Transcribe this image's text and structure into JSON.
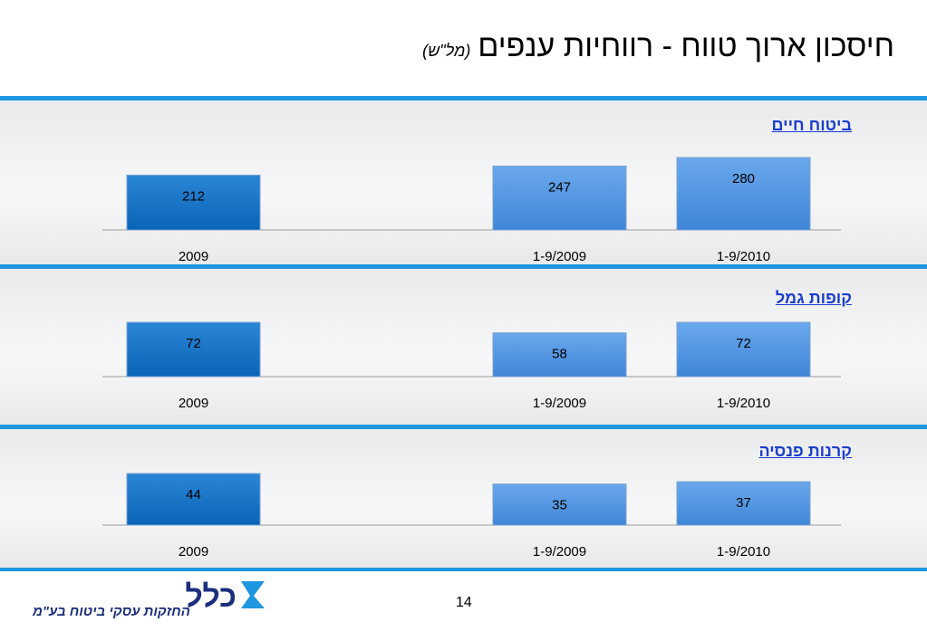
{
  "header": {
    "title": "חיסכון ארוך טווח - רווחיות ענפים",
    "unit": "(מל\"ש)"
  },
  "footer": {
    "page_number": "14",
    "company_text": "החזקות עסקי ביטוח בע\"מ",
    "logo_word": "כלל"
  },
  "colors": {
    "accent": "#1f96e0",
    "bar_dark": "#0f6ec4",
    "bar_light": "#4f96e3",
    "section_title": "#1b3dcc"
  },
  "chart_data": [
    {
      "type": "bar",
      "title": "ביטוח חיים",
      "categories": [
        "2009",
        "1-9/2009",
        "1-9/2010"
      ],
      "values": [
        212,
        247,
        280
      ],
      "bar_style": [
        "dark",
        "light",
        "light"
      ]
    },
    {
      "type": "bar",
      "title": "קופות גמל",
      "categories": [
        "2009",
        "1-9/2009",
        "1-9/2010"
      ],
      "values": [
        72,
        58,
        72
      ],
      "bar_style": [
        "dark",
        "light",
        "light"
      ]
    },
    {
      "type": "bar",
      "title": "קרנות פנסיה",
      "categories": [
        "2009",
        "1-9/2009",
        "1-9/2010"
      ],
      "values": [
        44,
        35,
        37
      ],
      "bar_style": [
        "dark",
        "light",
        "light"
      ]
    }
  ]
}
